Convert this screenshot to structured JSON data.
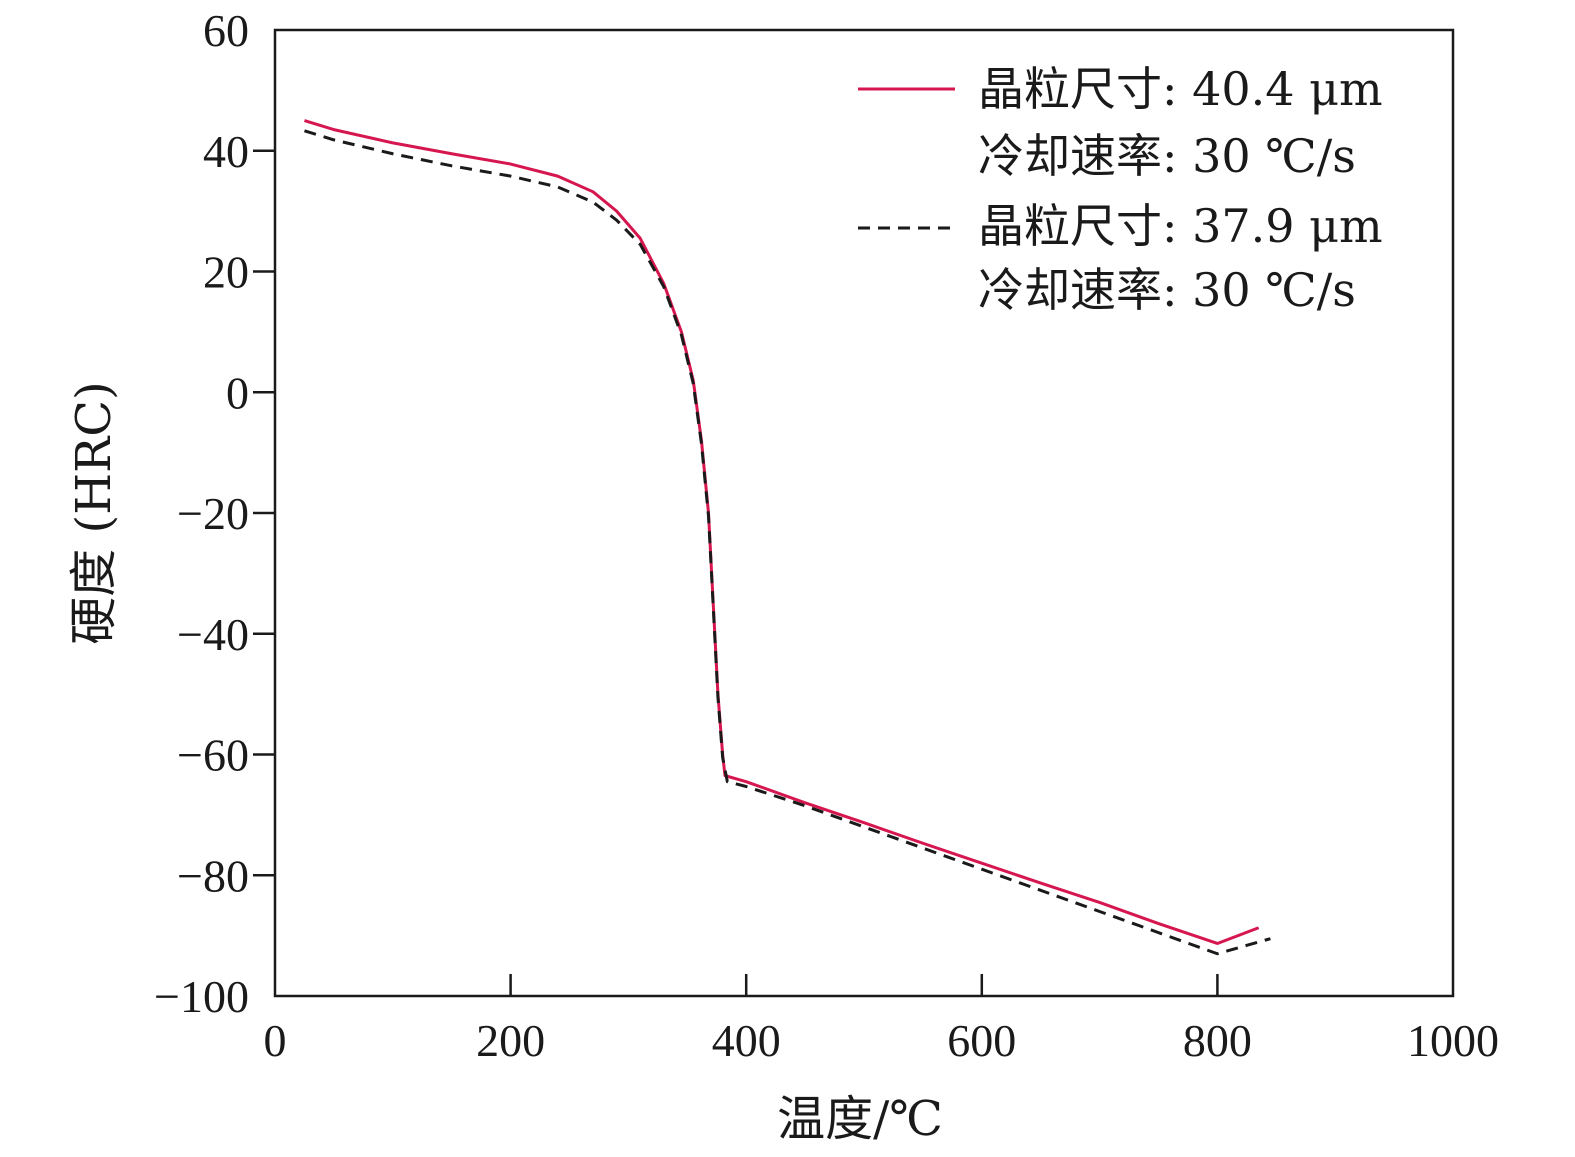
{
  "chart_data": {
    "type": "line",
    "xlabel": "温度/℃",
    "ylabel": "硬度 (HRC)",
    "xlim": [
      0,
      1000
    ],
    "ylim": [
      -100,
      60
    ],
    "xticks": [
      0,
      200,
      400,
      600,
      800,
      1000
    ],
    "yticks": [
      -100,
      -80,
      -60,
      -40,
      -20,
      0,
      20,
      40,
      60
    ],
    "xtick_labels": [
      "0",
      "200",
      "400",
      "600",
      "800",
      "1000"
    ],
    "ytick_labels": [
      "−100",
      "−80",
      "−60",
      "−40",
      "−20",
      "0",
      "20",
      "40",
      "60"
    ],
    "grid": false,
    "legend_position": "top-right",
    "legend": [
      {
        "line1": "晶粒尺寸: 40.4 μm",
        "line2": "冷却速率: 30 ℃/s"
      },
      {
        "line1": "晶粒尺寸: 37.9 μm",
        "line2": "冷却速率: 30 ℃/s"
      }
    ],
    "series": [
      {
        "color": "#d6174f",
        "dash": "solid",
        "x": [
          25,
          50,
          100,
          150,
          200,
          240,
          270,
          290,
          310,
          330,
          345,
          355,
          362,
          368,
          372,
          376,
          380,
          382,
          400,
          450,
          500,
          550,
          600,
          650,
          700,
          750,
          800,
          835
        ],
        "y": [
          45,
          43.5,
          41.3,
          39.5,
          37.8,
          35.8,
          33.2,
          30,
          25.5,
          18,
          10,
          2,
          -8,
          -20,
          -35,
          -50,
          -60,
          -63.5,
          -64.5,
          -68,
          -71.3,
          -74.7,
          -78,
          -81.3,
          -84.5,
          -88,
          -91.3,
          -88.7
        ]
      },
      {
        "color": "#1a1a1a",
        "dash": "dashed",
        "x": [
          25,
          50,
          100,
          150,
          200,
          240,
          270,
          290,
          310,
          330,
          345,
          355,
          362,
          368,
          372,
          376,
          380,
          384,
          400,
          450,
          500,
          550,
          600,
          650,
          700,
          750,
          800,
          845
        ],
        "y": [
          43.3,
          41.8,
          39.5,
          37.5,
          35.8,
          34,
          31.5,
          28.5,
          24.5,
          17.5,
          9.5,
          1.5,
          -8.5,
          -20.5,
          -35.5,
          -50.5,
          -60.5,
          -64.5,
          -65.3,
          -68.5,
          -72,
          -75.5,
          -79,
          -82.5,
          -86,
          -89.5,
          -93,
          -90.5
        ]
      }
    ]
  }
}
